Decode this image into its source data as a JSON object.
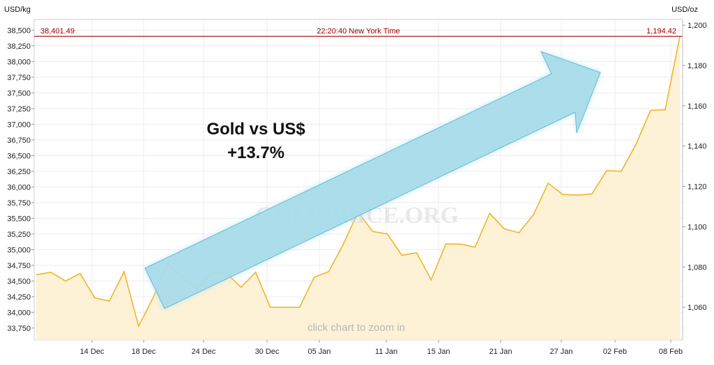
{
  "chart_data": {
    "type": "area",
    "left_axis_unit": "USD/kg",
    "right_axis_unit": "USD/oz",
    "x_ticks": [
      "14 Dec",
      "18 Dec",
      "24 Dec",
      "30 Dec",
      "05 Jan",
      "11 Jan",
      "15 Jan",
      "21 Jan",
      "27 Jan",
      "02 Feb",
      "08 Feb"
    ],
    "y_left_ticks": [
      "33,750",
      "34,000",
      "34,250",
      "34,500",
      "34,750",
      "35,000",
      "35,250",
      "35,500",
      "35,750",
      "36,000",
      "36,250",
      "36,500",
      "36,750",
      "37,000",
      "37,250",
      "37,500",
      "37,750",
      "38,000",
      "38,250",
      "38,500"
    ],
    "y_left_range": [
      33560,
      38670
    ],
    "y_right_ticks": [
      "1,060",
      "1,080",
      "1,100",
      "1,120",
      "1,140",
      "1,160",
      "1,180",
      "1,200"
    ],
    "y_right_range": [
      1043.8,
      1202.8
    ],
    "series": [
      {
        "color": "#f0b429",
        "fill": "#fdf1d6",
        "values": [
          34600,
          34640,
          34500,
          34620,
          34230,
          34180,
          34650,
          33780,
          34240,
          34780,
          34560,
          34380,
          34630,
          34630,
          34400,
          34640,
          34080,
          34080,
          34080,
          34560,
          34650,
          35090,
          35600,
          35290,
          35250,
          34910,
          34950,
          34520,
          35090,
          35090,
          35040,
          35580,
          35330,
          35270,
          35560,
          36060,
          35880,
          35870,
          35890,
          36260,
          36250,
          36680,
          37220,
          37230,
          38401.49
        ]
      }
    ],
    "reference_line": {
      "value_left": 38401.49,
      "left_label": "38,401.49",
      "center_label": "22:20:40 New York Time",
      "right_label": "1,194.42",
      "color": "#a40000"
    },
    "annotation": {
      "line1": "Gold vs US$",
      "line2": "+13.7%",
      "arrow_color": "#a8dcea"
    },
    "watermark": "GOLDPRICE.ORG",
    "zoom_hint": "click chart to zoom in",
    "grid": true
  }
}
